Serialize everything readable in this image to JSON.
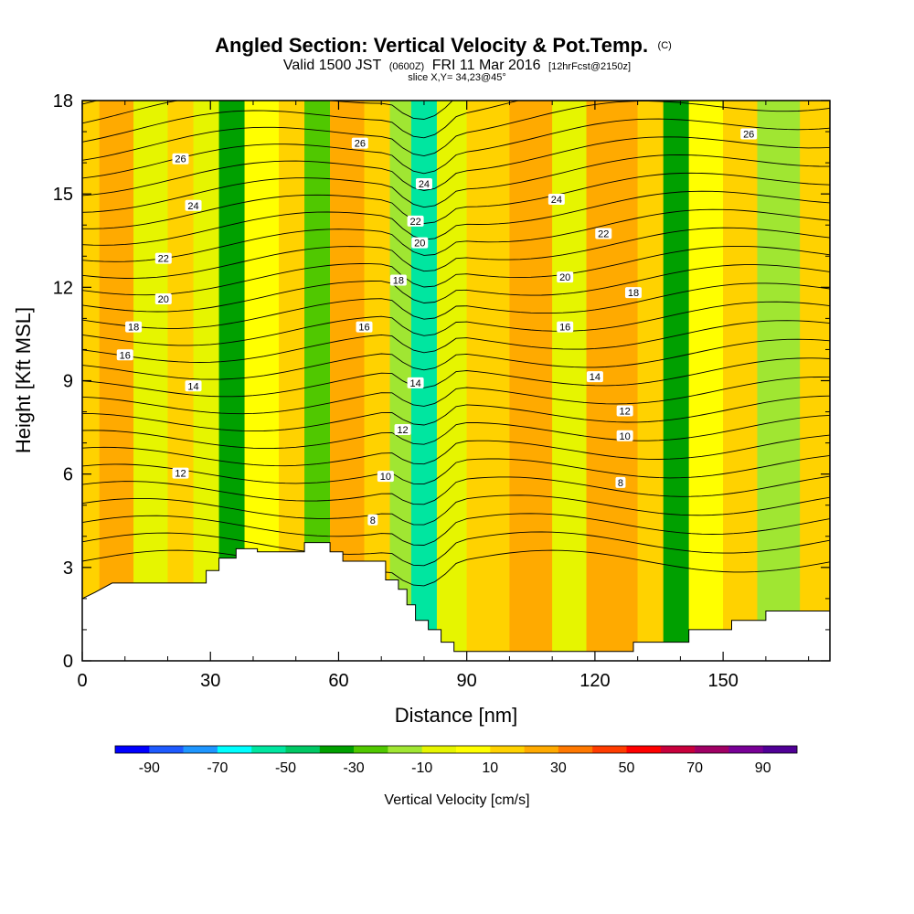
{
  "chart_data": {
    "type": "heatmap",
    "title": "Angled Section: Vertical Velocity & Pot.Temp.",
    "title_units": "(C)",
    "subtitle_prefix": "Valid 1500 JST",
    "subtitle_utc": "(0600Z)",
    "subtitle_date": "FRI 11 Mar 2016",
    "subtitle_fcst": "[12hrFcst@2150z]",
    "slice_info": "slice X,Y= 34,23@45°",
    "xlabel": "Distance [nm]",
    "ylabel": "Height [Kft MSL]",
    "xlim": [
      0,
      175
    ],
    "ylim": [
      0,
      18
    ],
    "x_ticks": [
      0,
      30,
      60,
      90,
      120,
      150
    ],
    "y_ticks": [
      0,
      3,
      6,
      9,
      12,
      15,
      18
    ],
    "colorbar": {
      "title": "Vertical Velocity [cm/s]",
      "tick_labels": [
        "-90",
        "-70",
        "-50",
        "-30",
        "-10",
        "10",
        "30",
        "50",
        "70",
        "90"
      ],
      "tick_values": [
        -90,
        -70,
        -50,
        -30,
        -10,
        10,
        30,
        50,
        70,
        90
      ],
      "bounds": [
        -100,
        100
      ],
      "colors": [
        "#0000ff",
        "#1e5aff",
        "#1e96ff",
        "#00ffff",
        "#00e6a0",
        "#00c864",
        "#00a000",
        "#50c800",
        "#a0e632",
        "#e6f500",
        "#ffff00",
        "#ffd200",
        "#ffaa00",
        "#ff7800",
        "#ff3c00",
        "#ff0000",
        "#c8003c",
        "#a00064",
        "#780096",
        "#500096"
      ]
    },
    "vertical_velocity_bands": [
      {
        "x0": 0,
        "x1": 4,
        "value": 10
      },
      {
        "x0": 4,
        "x1": 12,
        "value": 25
      },
      {
        "x0": 12,
        "x1": 20,
        "value": -8
      },
      {
        "x0": 20,
        "x1": 26,
        "value": 15
      },
      {
        "x0": 26,
        "x1": 32,
        "value": -10
      },
      {
        "x0": 32,
        "x1": 38,
        "value": -35
      },
      {
        "x0": 38,
        "x1": 46,
        "value": 8
      },
      {
        "x0": 46,
        "x1": 52,
        "value": 15
      },
      {
        "x0": 52,
        "x1": 58,
        "value": -25
      },
      {
        "x0": 58,
        "x1": 66,
        "value": 20
      },
      {
        "x0": 66,
        "x1": 72,
        "value": 12
      },
      {
        "x0": 72,
        "x1": 77,
        "value": -15
      },
      {
        "x0": 77,
        "x1": 83,
        "value": -55
      },
      {
        "x0": 83,
        "x1": 90,
        "value": -8
      },
      {
        "x0": 90,
        "x1": 100,
        "value": 12
      },
      {
        "x0": 100,
        "x1": 110,
        "value": 28
      },
      {
        "x0": 110,
        "x1": 118,
        "value": -10
      },
      {
        "x0": 118,
        "x1": 130,
        "value": 20
      },
      {
        "x0": 130,
        "x1": 136,
        "value": 10
      },
      {
        "x0": 136,
        "x1": 142,
        "value": -40
      },
      {
        "x0": 142,
        "x1": 150,
        "value": 5
      },
      {
        "x0": 150,
        "x1": 158,
        "value": 10
      },
      {
        "x0": 158,
        "x1": 168,
        "value": -12
      },
      {
        "x0": 168,
        "x1": 175,
        "value": 10
      }
    ],
    "terrain_top": [
      {
        "x": 0,
        "y": 2.0
      },
      {
        "x": 3,
        "y": 2.2
      },
      {
        "x": 7,
        "y": 2.5
      },
      {
        "x": 29,
        "y": 2.5
      },
      {
        "x": 29,
        "y": 2.9
      },
      {
        "x": 32,
        "y": 2.9
      },
      {
        "x": 32,
        "y": 3.3
      },
      {
        "x": 36,
        "y": 3.3
      },
      {
        "x": 36,
        "y": 3.6
      },
      {
        "x": 41,
        "y": 3.6
      },
      {
        "x": 41,
        "y": 3.5
      },
      {
        "x": 52,
        "y": 3.5
      },
      {
        "x": 52,
        "y": 3.8
      },
      {
        "x": 58,
        "y": 3.8
      },
      {
        "x": 58,
        "y": 3.5
      },
      {
        "x": 61,
        "y": 3.5
      },
      {
        "x": 61,
        "y": 3.2
      },
      {
        "x": 71,
        "y": 3.2
      },
      {
        "x": 71,
        "y": 2.6
      },
      {
        "x": 74,
        "y": 2.6
      },
      {
        "x": 74,
        "y": 2.3
      },
      {
        "x": 76,
        "y": 2.3
      },
      {
        "x": 76,
        "y": 1.8
      },
      {
        "x": 78,
        "y": 1.8
      },
      {
        "x": 78,
        "y": 1.3
      },
      {
        "x": 81,
        "y": 1.3
      },
      {
        "x": 81,
        "y": 1.0
      },
      {
        "x": 84,
        "y": 1.0
      },
      {
        "x": 84,
        "y": 0.6
      },
      {
        "x": 87,
        "y": 0.6
      },
      {
        "x": 87,
        "y": 0.3
      },
      {
        "x": 129,
        "y": 0.3
      },
      {
        "x": 129,
        "y": 0.6
      },
      {
        "x": 142,
        "y": 0.6
      },
      {
        "x": 142,
        "y": 1.0
      },
      {
        "x": 152,
        "y": 1.0
      },
      {
        "x": 152,
        "y": 1.3
      },
      {
        "x": 160,
        "y": 1.3
      },
      {
        "x": 160,
        "y": 1.6
      },
      {
        "x": 175,
        "y": 1.6
      }
    ],
    "theta_contour_labels": [
      {
        "label": "26",
        "x": 23,
        "y": 16.1
      },
      {
        "label": "26",
        "x": 65,
        "y": 16.6
      },
      {
        "label": "26",
        "x": 156,
        "y": 16.9
      },
      {
        "label": "24",
        "x": 26,
        "y": 14.6
      },
      {
        "label": "24",
        "x": 80,
        "y": 15.3
      },
      {
        "label": "24",
        "x": 111,
        "y": 14.8
      },
      {
        "label": "22",
        "x": 19,
        "y": 12.9
      },
      {
        "label": "22",
        "x": 78,
        "y": 14.1
      },
      {
        "label": "22",
        "x": 122,
        "y": 13.7
      },
      {
        "label": "20",
        "x": 19,
        "y": 11.6
      },
      {
        "label": "20",
        "x": 79,
        "y": 13.4
      },
      {
        "label": "20",
        "x": 113,
        "y": 12.3
      },
      {
        "label": "18",
        "x": 12,
        "y": 10.7
      },
      {
        "label": "18",
        "x": 74,
        "y": 12.2
      },
      {
        "label": "18",
        "x": 129,
        "y": 11.8
      },
      {
        "label": "16",
        "x": 10,
        "y": 9.8
      },
      {
        "label": "16",
        "x": 66,
        "y": 10.7
      },
      {
        "label": "16",
        "x": 113,
        "y": 10.7
      },
      {
        "label": "14",
        "x": 26,
        "y": 8.8
      },
      {
        "label": "14",
        "x": 78,
        "y": 8.9
      },
      {
        "label": "14",
        "x": 120,
        "y": 9.1
      },
      {
        "label": "12",
        "x": 23,
        "y": 6.0
      },
      {
        "label": "12",
        "x": 75,
        "y": 7.4
      },
      {
        "label": "12",
        "x": 127,
        "y": 8.0
      },
      {
        "label": "10",
        "x": 71,
        "y": 5.9
      },
      {
        "label": "10",
        "x": 127,
        "y": 7.2
      },
      {
        "label": "8",
        "x": 68,
        "y": 4.5
      },
      {
        "label": "8",
        "x": 126,
        "y": 5.7
      }
    ]
  }
}
